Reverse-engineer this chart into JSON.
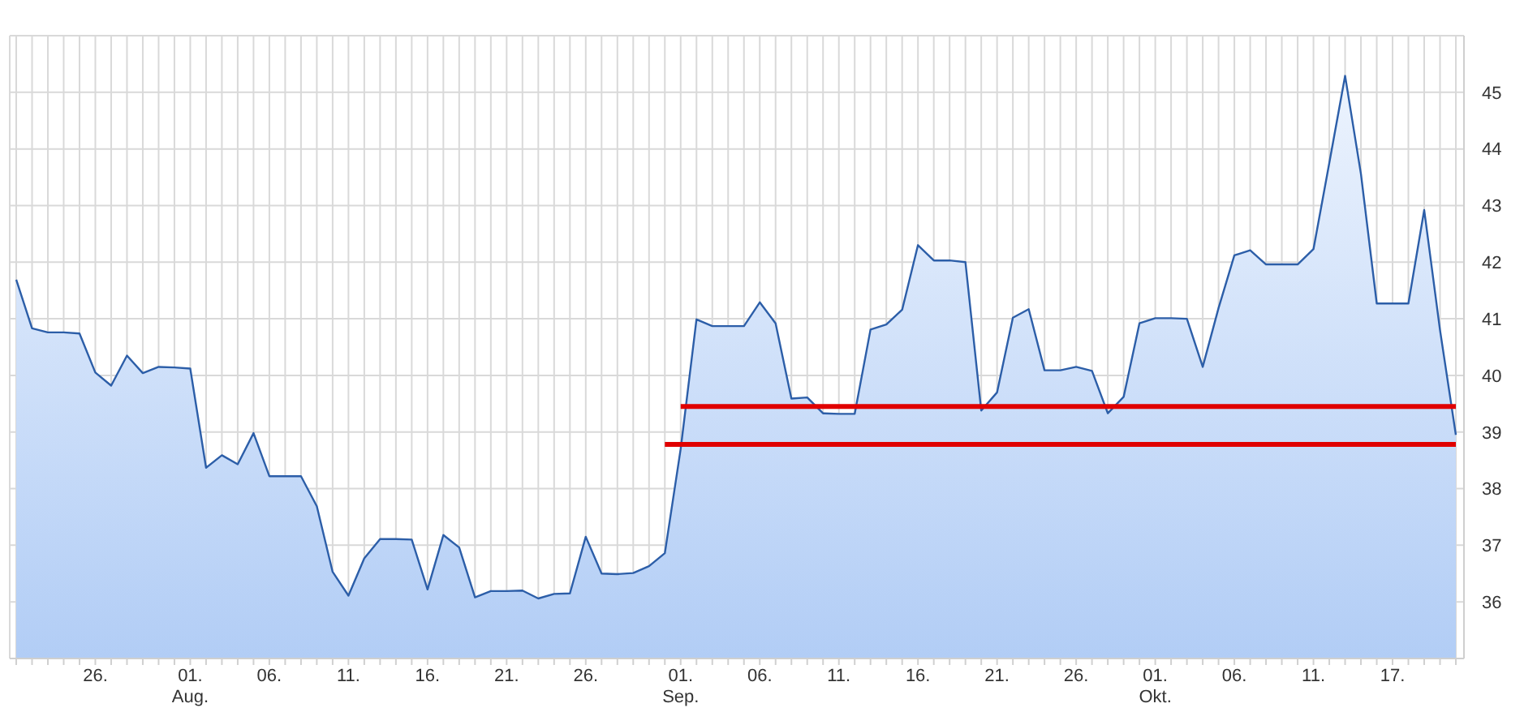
{
  "chart_data": {
    "type": "area",
    "categories": [
      null,
      null,
      null,
      null,
      null,
      "26.",
      null,
      null,
      null,
      null,
      null,
      "01.\nAug.",
      null,
      null,
      null,
      null,
      "06.",
      null,
      null,
      null,
      null,
      "11.",
      null,
      null,
      null,
      null,
      "16.",
      null,
      null,
      null,
      null,
      "21.",
      null,
      null,
      null,
      null,
      "26.",
      null,
      null,
      null,
      null,
      null,
      "01.\nSep.",
      null,
      null,
      null,
      null,
      "06.",
      null,
      null,
      null,
      null,
      "11.",
      null,
      null,
      null,
      null,
      "16.",
      null,
      null,
      null,
      null,
      "21.",
      null,
      null,
      null,
      null,
      "26.",
      null,
      null,
      null,
      null,
      "01.\nOkt.",
      null,
      null,
      null,
      null,
      "06.",
      null,
      null,
      null,
      null,
      "11.",
      null,
      null,
      null,
      null,
      "17.",
      null,
      null,
      null,
      null
    ],
    "series": [
      {
        "color": "#2c5ea8",
        "values": [
          41.69,
          40.83,
          40.76,
          40.76,
          40.74,
          40.05,
          39.82,
          40.35,
          40.04,
          40.15,
          40.14,
          40.12,
          38.37,
          38.59,
          38.43,
          38.98,
          38.22,
          38.22,
          38.22,
          37.69,
          36.53,
          36.11,
          36.77,
          37.11,
          37.11,
          37.1,
          36.22,
          37.18,
          36.96,
          36.08,
          36.19,
          36.19,
          36.2,
          36.06,
          36.14,
          36.15,
          37.15,
          36.5,
          36.49,
          36.51,
          36.63,
          36.86,
          38.7,
          40.99,
          40.87,
          40.87,
          40.87,
          41.29,
          40.92,
          39.59,
          39.61,
          39.33,
          39.32,
          39.32,
          40.81,
          40.9,
          41.16,
          42.3,
          42.03,
          42.03,
          42.0,
          39.38,
          39.7,
          41.02,
          41.17,
          40.09,
          40.09,
          40.15,
          40.08,
          39.33,
          39.62,
          40.92,
          41.01,
          41.01,
          41.0,
          40.15,
          41.19,
          42.12,
          42.21,
          41.96,
          41.96,
          41.96,
          42.23,
          43.75,
          45.29,
          43.56,
          41.27,
          41.27,
          41.27,
          42.92,
          40.8,
          38.95
        ]
      },
      {
        "type": "line",
        "color": "#e00000",
        "values": [
          null,
          null,
          null,
          null,
          null,
          null,
          null,
          null,
          null,
          null,
          null,
          null,
          null,
          null,
          null,
          null,
          null,
          null,
          null,
          null,
          null,
          null,
          null,
          null,
          null,
          null,
          null,
          null,
          null,
          null,
          null,
          null,
          null,
          null,
          null,
          null,
          null,
          null,
          null,
          null,
          null,
          null,
          39.45,
          39.45,
          39.45,
          39.45,
          39.45,
          39.45,
          39.45,
          39.45,
          39.45,
          39.45,
          39.45,
          39.45,
          39.45,
          39.45,
          39.45,
          39.45,
          39.45,
          39.45,
          39.45,
          39.45,
          39.45,
          39.45,
          39.45,
          39.45,
          39.45,
          39.45,
          39.45,
          39.45,
          39.45,
          39.45,
          39.45,
          39.45,
          39.45,
          39.45,
          39.45,
          39.45,
          39.45,
          39.45,
          39.45,
          39.45,
          39.45,
          39.45,
          39.45,
          39.45,
          39.45,
          39.45,
          39.45,
          39.45,
          39.45,
          39.45
        ]
      },
      {
        "type": "line",
        "color": "#e00000",
        "values": [
          null,
          null,
          null,
          null,
          null,
          null,
          null,
          null,
          null,
          null,
          null,
          null,
          null,
          null,
          null,
          null,
          null,
          null,
          null,
          null,
          null,
          null,
          null,
          null,
          null,
          null,
          null,
          null,
          null,
          null,
          null,
          null,
          null,
          null,
          null,
          null,
          null,
          null,
          null,
          null,
          null,
          38.78,
          38.78,
          38.78,
          38.78,
          38.78,
          38.78,
          38.78,
          38.78,
          38.78,
          38.78,
          38.78,
          38.78,
          38.78,
          38.78,
          38.78,
          38.78,
          38.78,
          38.78,
          38.78,
          38.78,
          38.78,
          38.78,
          38.78,
          38.78,
          38.78,
          38.78,
          38.78,
          38.78,
          38.78,
          38.78,
          38.78,
          38.78,
          38.78,
          38.78,
          38.78,
          38.78,
          38.78,
          38.78,
          38.78,
          38.78,
          38.78,
          38.78,
          38.78,
          38.78,
          38.78,
          38.78,
          38.78,
          38.78,
          38.78,
          38.78,
          38.78
        ]
      }
    ],
    "ylim": [
      35,
      46
    ],
    "yticks": [
      36,
      37,
      38,
      39,
      40,
      41,
      42,
      43,
      44,
      45
    ],
    "grid": true
  }
}
